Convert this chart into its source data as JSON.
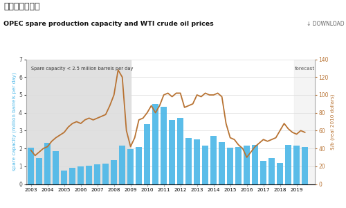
{
  "title_cn": "价格上涨的能力",
  "title_en": "OPEC spare production capacity and WTI crude oil prices",
  "ylabel_left": "spare capacity (million barrels per day)",
  "ylabel_right": "$/b (real 2010 dollars)",
  "download_text": "↓ DOWNLOAD",
  "forecast_text": "forecast",
  "annotation_text": "Spare capacity < 2.5 million barrels per day",
  "bar_color": "#4db8e8",
  "line_color": "#b87333",
  "shaded_color": "#e0e0e0",
  "background_color": "#ffffff",
  "bar_years": [
    2003.0,
    2003.5,
    2004.0,
    2004.5,
    2005.0,
    2005.5,
    2006.0,
    2006.5,
    2007.0,
    2007.5,
    2008.0,
    2008.5,
    2009.0,
    2009.5,
    2010.0,
    2010.5,
    2011.0,
    2011.5,
    2012.0,
    2012.5,
    2013.0,
    2013.5,
    2014.0,
    2014.5,
    2015.0,
    2015.5,
    2016.0,
    2016.5,
    2017.0,
    2017.5,
    2018.0,
    2018.5,
    2019.0,
    2019.5
  ],
  "bar_values": [
    2.05,
    1.45,
    2.3,
    1.85,
    0.75,
    0.9,
    1.0,
    1.05,
    1.1,
    1.15,
    1.35,
    2.15,
    1.95,
    2.1,
    3.35,
    4.5,
    4.35,
    3.6,
    3.7,
    2.6,
    2.5,
    2.15,
    2.7,
    2.35,
    2.05,
    2.1,
    2.15,
    2.2,
    1.3,
    1.45,
    1.2,
    2.2,
    2.15,
    2.1
  ],
  "line_years": [
    2003.0,
    2003.25,
    2003.5,
    2003.75,
    2004.0,
    2004.25,
    2004.5,
    2004.75,
    2005.0,
    2005.25,
    2005.5,
    2005.75,
    2006.0,
    2006.25,
    2006.5,
    2006.75,
    2007.0,
    2007.25,
    2007.5,
    2007.75,
    2008.0,
    2008.25,
    2008.5,
    2008.75,
    2009.0,
    2009.25,
    2009.5,
    2009.75,
    2010.0,
    2010.25,
    2010.5,
    2010.75,
    2011.0,
    2011.25,
    2011.5,
    2011.75,
    2012.0,
    2012.25,
    2012.5,
    2012.75,
    2013.0,
    2013.25,
    2013.5,
    2013.75,
    2014.0,
    2014.25,
    2014.5,
    2014.75,
    2015.0,
    2015.25,
    2015.5,
    2015.75,
    2016.0,
    2016.25,
    2016.5,
    2016.75,
    2017.0,
    2017.25,
    2017.5,
    2017.75,
    2018.0,
    2018.25,
    2018.5,
    2018.75,
    2019.0,
    2019.25,
    2019.5
  ],
  "line_values": [
    38,
    32,
    36,
    40,
    42,
    48,
    52,
    55,
    58,
    64,
    68,
    70,
    68,
    72,
    74,
    72,
    74,
    76,
    78,
    88,
    100,
    128,
    120,
    60,
    42,
    52,
    72,
    74,
    80,
    88,
    80,
    88,
    100,
    102,
    98,
    102,
    102,
    86,
    88,
    90,
    100,
    98,
    102,
    100,
    100,
    102,
    98,
    68,
    52,
    50,
    44,
    40,
    30,
    36,
    42,
    46,
    50,
    48,
    50,
    52,
    60,
    68,
    62,
    58,
    56,
    60,
    58
  ],
  "ylim_left": [
    0,
    7
  ],
  "ylim_right": [
    0,
    140
  ],
  "yticks_left": [
    0,
    1,
    2,
    3,
    4,
    5,
    6,
    7
  ],
  "yticks_right": [
    0,
    20,
    40,
    60,
    80,
    100,
    120,
    140
  ],
  "shaded_xmin": 2002.75,
  "shaded_xmax": 2009.0,
  "forecast_xmin": 2018.85,
  "xmin": 2002.7,
  "xmax": 2020.1,
  "xtick_years": [
    2003,
    2004,
    2005,
    2006,
    2007,
    2008,
    2009,
    2010,
    2011,
    2012,
    2013,
    2014,
    2015,
    2016,
    2017,
    2018,
    2019
  ]
}
